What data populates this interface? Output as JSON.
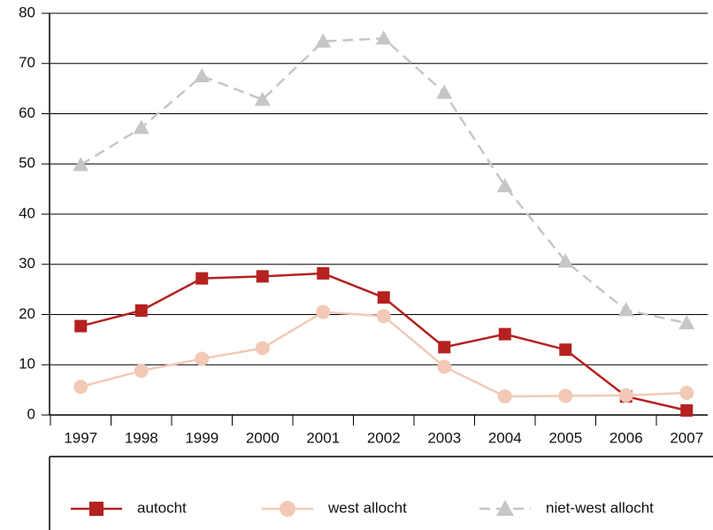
{
  "chart_data": {
    "type": "line",
    "categories": [
      "1997",
      "1998",
      "1999",
      "2000",
      "2001",
      "2002",
      "2003",
      "2004",
      "2005",
      "2006",
      "2007"
    ],
    "series": [
      {
        "name": "autocht",
        "color": "#b5211f",
        "marker": "square",
        "dashed": false,
        "values": [
          17.7,
          20.8,
          27.2,
          27.6,
          28.2,
          23.4,
          13.5,
          16.1,
          13.0,
          3.7,
          0.9
        ]
      },
      {
        "name": "west allocht",
        "color": "#f2c9b6",
        "marker": "circle",
        "dashed": false,
        "values": [
          5.6,
          8.8,
          11.2,
          13.3,
          20.5,
          19.7,
          9.6,
          3.7,
          3.8,
          3.9,
          4.4
        ]
      },
      {
        "name": "niet-west allocht",
        "color": "#c6c6c6",
        "marker": "triangle",
        "dashed": true,
        "values": [
          49.8,
          57.2,
          67.5,
          62.8,
          74.4,
          75.0,
          64.2,
          45.6,
          30.6,
          20.9,
          18.3
        ]
      }
    ],
    "ylim": [
      0,
      80
    ],
    "yticks": [
      0,
      10,
      20,
      30,
      40,
      50,
      60,
      70,
      80
    ],
    "grid": true,
    "legend": "bottom"
  }
}
